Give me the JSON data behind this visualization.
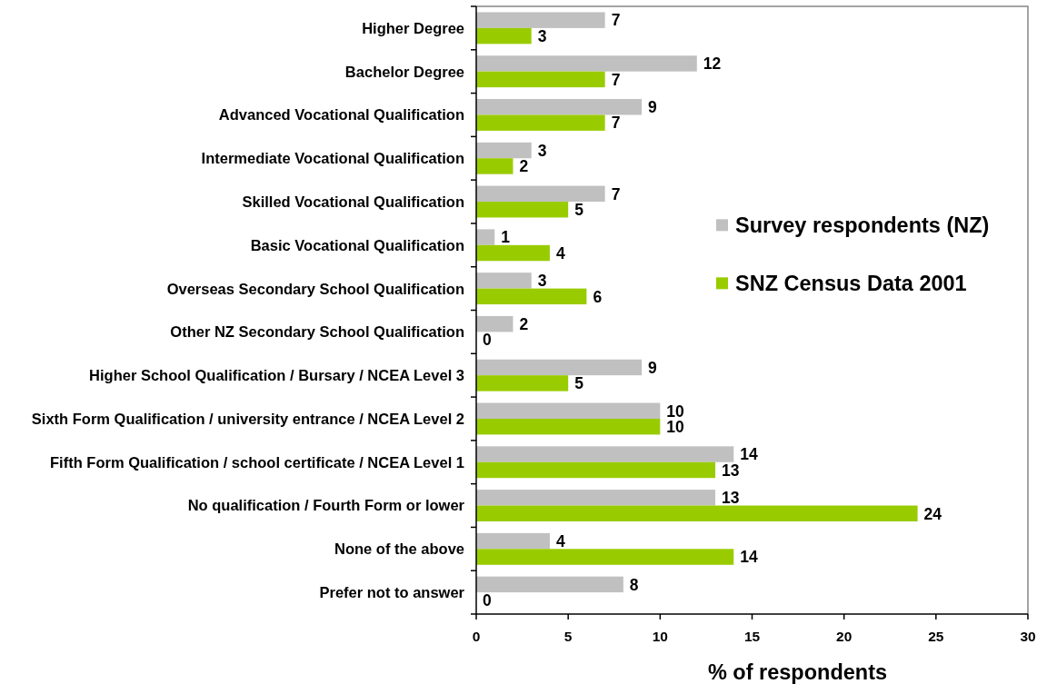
{
  "chart_data": {
    "type": "bar",
    "orientation": "horizontal",
    "xlabel": "% of respondents",
    "categories": [
      "Higher Degree",
      "Bachelor Degree",
      "Advanced Vocational Qualification",
      "Intermediate Vocational Qualification",
      "Skilled Vocational Qualification",
      "Basic Vocational Qualification",
      "Overseas Secondary School Qualification",
      "Other NZ Secondary School Qualification",
      "Higher School Qualification / Bursary / NCEA Level 3",
      "Sixth Form Qualification / university entrance / NCEA Level 2",
      "Fifth Form Qualification / school certificate / NCEA Level 1",
      "No qualification / Fourth Form or lower",
      "None of the above",
      "Prefer not to answer"
    ],
    "series": [
      {
        "name": "Survey respondents (NZ)",
        "color": "#c0c0c0",
        "values": [
          7,
          12,
          9,
          3,
          7,
          1,
          3,
          2,
          9,
          10,
          14,
          13,
          4,
          8
        ]
      },
      {
        "name": "SNZ Census Data 2001",
        "color": "#99cc00",
        "values": [
          3,
          7,
          7,
          2,
          5,
          4,
          6,
          0,
          5,
          10,
          13,
          24,
          14,
          0
        ]
      }
    ],
    "xlim": [
      0,
      30
    ],
    "xticks": [
      0,
      5,
      10,
      15,
      20,
      25,
      30
    ],
    "legend": "right",
    "data_labels": true
  }
}
